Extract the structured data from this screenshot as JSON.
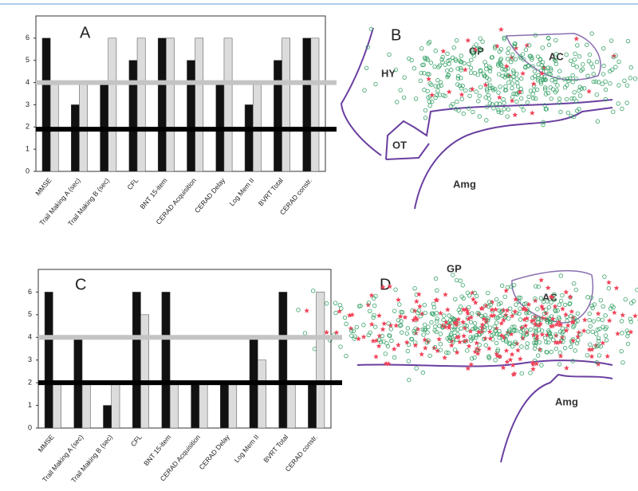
{
  "chart_data": [
    {
      "type": "bar",
      "title": "A",
      "categories": [
        "MMSE",
        "Trail Making A (sec)",
        "Trail Making B (sec)",
        "CFL",
        "BNT 15-item",
        "CERAD Acquisition",
        "CERAD Delay",
        "Log Mem II",
        "BVRT Total",
        "CERAD constr."
      ],
      "series": [
        {
          "color": "#111111",
          "values": [
            6,
            3,
            4,
            5,
            6,
            5,
            4,
            3,
            5,
            6
          ]
        },
        {
          "color": "#dcdcdc",
          "values": [
            4,
            4,
            6,
            6,
            6,
            6,
            6,
            4,
            6,
            6
          ]
        }
      ],
      "reference_lines": [
        {
          "value": 4,
          "color": "#c4c4c4"
        },
        {
          "value": 1.9,
          "color": "#000000"
        }
      ],
      "ylim": [
        0,
        7
      ],
      "yticks": [
        0,
        1,
        2,
        3,
        4,
        5,
        6
      ]
    },
    {
      "type": "bar",
      "title": "C",
      "categories": [
        "MMSE",
        "Trail Making A (sec)",
        "Trail Making B (sec)",
        "CFL",
        "BNT 15-item",
        "CERAD Acquisition",
        "CERAD Delay",
        "Log Mem II",
        "BVRT Total",
        "CERAD constr."
      ],
      "series": [
        {
          "color": "#111111",
          "values": [
            6,
            4,
            1,
            6,
            6,
            2,
            2,
            4,
            6,
            2
          ]
        },
        {
          "color": "#dcdcdc",
          "values": [
            2,
            2,
            2,
            5,
            2,
            2,
            2,
            3,
            2,
            6
          ]
        }
      ],
      "reference_lines": [
        {
          "value": 4,
          "color": "#c4c4c4"
        },
        {
          "value": 2,
          "color": "#000000"
        }
      ],
      "ylim": [
        0,
        7
      ],
      "yticks": [
        0,
        1,
        2,
        3,
        4,
        5,
        6
      ]
    }
  ],
  "diagrams": {
    "top": {
      "panel": "B",
      "labels": [
        "HY",
        "GP",
        "AC",
        "OT",
        "Amg"
      ]
    },
    "bottom": {
      "panel": "D",
      "labels": [
        "GP",
        "AC",
        "Amg"
      ]
    }
  }
}
